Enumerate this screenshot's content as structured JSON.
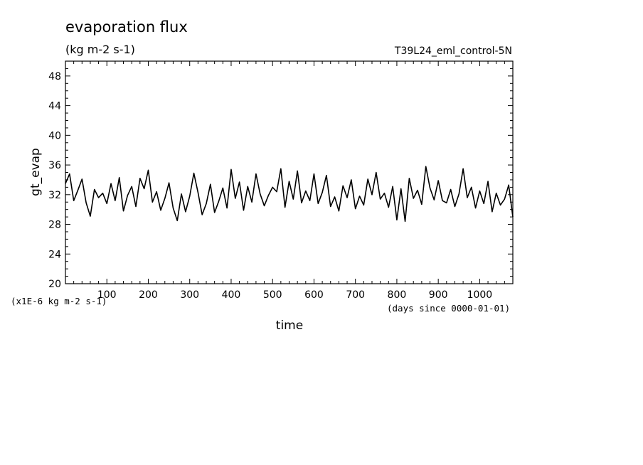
{
  "chart_data": {
    "type": "line",
    "title": "evaporation flux",
    "subtitle": "(kg m-2 s-1)",
    "run_label": "T39L24_eml_control-5N",
    "xlabel": "time",
    "x_units": "(days since 0000-01-01)",
    "ylabel": "gt_evap",
    "y_units": "(x1E-6 kg m-2 s-1)",
    "xlim": [
      0,
      1080
    ],
    "ylim": [
      20,
      50
    ],
    "x_ticks": [
      100,
      200,
      300,
      400,
      500,
      600,
      700,
      800,
      900,
      1000
    ],
    "y_ticks": [
      20,
      24,
      28,
      32,
      36,
      40,
      44,
      48
    ],
    "grid": false,
    "line_color": "#000000",
    "series": [
      {
        "x": [
          0,
          10,
          20,
          30,
          40,
          50,
          60,
          70,
          80,
          90,
          100,
          110,
          120,
          130,
          140,
          150,
          160,
          170,
          180,
          190,
          200,
          210,
          220,
          230,
          240,
          250,
          260,
          270,
          280,
          290,
          300,
          310,
          320,
          330,
          340,
          350,
          360,
          370,
          380,
          390,
          400,
          410,
          420,
          430,
          440,
          450,
          460,
          470,
          480,
          490,
          500,
          510,
          520,
          530,
          540,
          550,
          560,
          570,
          580,
          590,
          600,
          610,
          620,
          630,
          640,
          650,
          660,
          670,
          680,
          690,
          700,
          710,
          720,
          730,
          740,
          750,
          760,
          770,
          780,
          790,
          800,
          810,
          820,
          830,
          840,
          850,
          860,
          870,
          880,
          890,
          900,
          910,
          920,
          930,
          940,
          950,
          960,
          970,
          980,
          990,
          1000,
          1010,
          1020,
          1030,
          1040,
          1050,
          1060,
          1070,
          1080
        ],
        "values": [
          33.5,
          34.8,
          31.2,
          32.6,
          34.1,
          30.9,
          29.1,
          32.7,
          31.6,
          32.2,
          30.8,
          33.5,
          31.2,
          34.3,
          29.8,
          31.9,
          33.1,
          30.4,
          34.2,
          32.8,
          35.3,
          31.0,
          32.4,
          29.9,
          31.5,
          33.6,
          30.2,
          28.5,
          32.1,
          29.7,
          31.8,
          34.9,
          32.3,
          29.3,
          30.8,
          33.4,
          29.6,
          31.1,
          32.9,
          30.2,
          35.4,
          31.5,
          33.7,
          29.9,
          33.1,
          31.0,
          34.8,
          32.1,
          30.5,
          31.9,
          33.0,
          32.4,
          35.5,
          30.3,
          33.8,
          31.4,
          35.2,
          30.9,
          32.5,
          31.2,
          34.8,
          30.8,
          32.3,
          34.6,
          30.4,
          31.7,
          29.8,
          33.2,
          31.6,
          34.0,
          30.1,
          31.8,
          30.6,
          34.1,
          32.0,
          35.0,
          31.4,
          32.2,
          30.3,
          33.1,
          28.6,
          32.8,
          28.4,
          34.2,
          31.5,
          32.6,
          30.7,
          35.8,
          32.9,
          31.3,
          33.9,
          31.2,
          30.9,
          32.7,
          30.4,
          32.1,
          35.5,
          31.6,
          33.0,
          30.2,
          32.5,
          30.8,
          33.8,
          29.7,
          32.2,
          30.6,
          31.4,
          33.3,
          29.0
        ]
      }
    ]
  }
}
